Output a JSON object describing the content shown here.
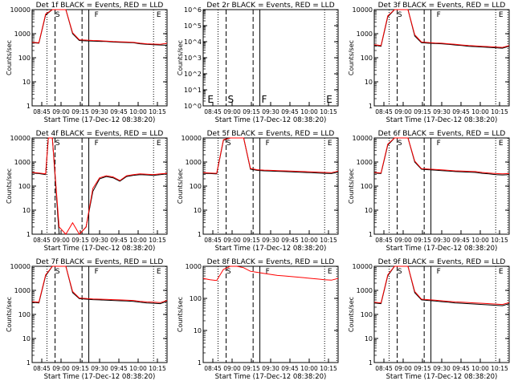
{
  "chart_data": [
    {
      "type": "line",
      "title": "Det 1f BLACK = Events, RED = LLD",
      "ylabel": "Counts/sec",
      "xlabel": "Start Time (17-Dec-12 08:38:20)",
      "yscale": "log",
      "ylim": [
        1,
        10000
      ],
      "ytick_labels": [
        "1",
        "10",
        "100",
        "1000",
        "10000"
      ],
      "xtick_labels": [
        "08:45",
        "09:00",
        "09:15",
        "09:30",
        "09:45",
        "10:00",
        "10:15"
      ],
      "markers": [
        "S",
        "F",
        "E"
      ],
      "series": [
        {
          "color": "#000000",
          "x": [
            0,
            5,
            10,
            15,
            20,
            25,
            30,
            35,
            40,
            45,
            50,
            55,
            60,
            65,
            70,
            75,
            80,
            85,
            90,
            95,
            100
          ],
          "y": [
            420,
            400,
            6000,
            10000,
            10000,
            10000,
            1000,
            520,
            500,
            490,
            480,
            470,
            450,
            440,
            430,
            420,
            380,
            360,
            350,
            340,
            330
          ]
        },
        {
          "color": "#ff0000",
          "x": [
            0,
            5,
            10,
            15,
            20,
            25,
            30,
            35,
            40,
            45,
            50,
            55,
            60,
            65,
            70,
            75,
            80,
            85,
            90,
            95,
            100
          ],
          "y": [
            440,
            420,
            6500,
            10000,
            10000,
            10000,
            1100,
            560,
            540,
            520,
            510,
            490,
            470,
            460,
            450,
            440,
            400,
            380,
            370,
            360,
            400
          ]
        }
      ]
    },
    {
      "type": "line",
      "title": "Det 2r BLACK = Events, RED = LLD",
      "ylabel": "Counts/sec",
      "xlabel": "Start Time (17-Dec-12 08:38:20)",
      "yscale": "log",
      "ylim": [
        1,
        1000000
      ],
      "ytick_labels": [
        "10^0",
        "10^1",
        "10^2",
        "10^3",
        "10^4",
        "10^5",
        "10^6"
      ],
      "xtick_labels": [
        "08:45",
        "09:00",
        "09:15",
        "09:30",
        "09:45",
        "10:00",
        "10:15"
      ],
      "markers": [
        "E",
        "S",
        "F",
        "E"
      ],
      "series": []
    },
    {
      "type": "line",
      "title": "Det 3f BLACK = Events, RED = LLD",
      "ylabel": "Counts/sec",
      "xlabel": "Start Time (17-Dec-12 08:38:20)",
      "yscale": "log",
      "ylim": [
        1,
        10000
      ],
      "ytick_labels": [
        "1",
        "10",
        "100",
        "1000",
        "10000"
      ],
      "xtick_labels": [
        "08:45",
        "09:00",
        "09:15",
        "09:30",
        "09:45",
        "10:00",
        "10:15"
      ],
      "markers": [
        "S",
        "F",
        "E"
      ],
      "series": [
        {
          "color": "#000000",
          "x": [
            0,
            5,
            10,
            15,
            20,
            25,
            30,
            35,
            40,
            45,
            50,
            55,
            60,
            65,
            70,
            75,
            80,
            85,
            90,
            95,
            100
          ],
          "y": [
            330,
            300,
            5000,
            10000,
            10000,
            10000,
            800,
            420,
            400,
            390,
            380,
            360,
            340,
            320,
            300,
            290,
            280,
            270,
            260,
            250,
            300
          ]
        },
        {
          "color": "#ff0000",
          "x": [
            0,
            5,
            10,
            15,
            20,
            25,
            30,
            35,
            40,
            45,
            50,
            55,
            60,
            65,
            70,
            75,
            80,
            85,
            90,
            95,
            100
          ],
          "y": [
            350,
            320,
            5500,
            10000,
            10000,
            10000,
            900,
            450,
            430,
            410,
            400,
            380,
            360,
            340,
            320,
            310,
            300,
            290,
            280,
            270,
            320
          ]
        }
      ]
    },
    {
      "type": "line",
      "title": "Det 4f BLACK = Events, RED = LLD",
      "ylabel": "Counts/sec",
      "xlabel": "Start Time (17-Dec-12 08:38:20)",
      "yscale": "log",
      "ylim": [
        1,
        10000
      ],
      "ytick_labels": [
        "1",
        "10",
        "100",
        "1000",
        "10000"
      ],
      "xtick_labels": [
        "08:45",
        "09:00",
        "09:15",
        "09:30",
        "09:45",
        "10:00",
        "10:15"
      ],
      "markers": [
        "S",
        "F",
        "E"
      ],
      "series": [
        {
          "color": "#000000",
          "x": [
            0,
            5,
            10,
            12,
            15,
            20,
            25,
            30,
            35,
            40,
            45,
            50,
            55,
            60,
            65,
            70,
            75,
            80,
            85,
            90,
            95,
            100
          ],
          "y": [
            350,
            330,
            300,
            10000,
            10000,
            1,
            1,
            1,
            1,
            2,
            60,
            200,
            250,
            220,
            160,
            250,
            280,
            300,
            290,
            280,
            300,
            320
          ]
        },
        {
          "color": "#ff0000",
          "x": [
            0,
            5,
            10,
            12,
            15,
            20,
            25,
            30,
            35,
            40,
            45,
            50,
            55,
            60,
            65,
            70,
            75,
            80,
            85,
            90,
            95,
            100
          ],
          "y": [
            370,
            350,
            320,
            10000,
            10000,
            2,
            1,
            3,
            1,
            2,
            80,
            220,
            270,
            240,
            170,
            270,
            300,
            320,
            310,
            300,
            320,
            340
          ]
        }
      ]
    },
    {
      "type": "line",
      "title": "Det 5f BLACK = Events, RED = LLD",
      "ylabel": "Counts/sec",
      "xlabel": "Start Time (17-Dec-12 08:38:20)",
      "yscale": "log",
      "ylim": [
        1,
        10000
      ],
      "ytick_labels": [
        "1",
        "10",
        "100",
        "1000",
        "10000"
      ],
      "xtick_labels": [
        "08:45",
        "09:00",
        "09:15",
        "09:30",
        "09:45",
        "10:00",
        "10:15"
      ],
      "markers": [
        "S",
        "F",
        "E"
      ],
      "series": [
        {
          "color": "#000000",
          "x": [
            0,
            5,
            10,
            15,
            20,
            25,
            30,
            35,
            40,
            45,
            50,
            55,
            60,
            65,
            70,
            75,
            80,
            85,
            90,
            95,
            100
          ],
          "y": [
            340,
            330,
            320,
            8000,
            10000,
            10000,
            10000,
            500,
            450,
            430,
            420,
            410,
            400,
            390,
            380,
            370,
            360,
            350,
            340,
            330,
            380
          ]
        },
        {
          "color": "#ff0000",
          "x": [
            0,
            5,
            10,
            15,
            20,
            25,
            30,
            35,
            40,
            45,
            50,
            55,
            60,
            65,
            70,
            75,
            80,
            85,
            90,
            95,
            100
          ],
          "y": [
            360,
            350,
            340,
            8500,
            10000,
            10000,
            10000,
            540,
            480,
            460,
            450,
            440,
            430,
            420,
            410,
            400,
            390,
            380,
            370,
            360,
            420
          ]
        }
      ]
    },
    {
      "type": "line",
      "title": "Det 6f BLACK = Events, RED = LLD",
      "ylabel": "Counts/sec",
      "xlabel": "Start Time (17-Dec-12 08:38:20)",
      "yscale": "log",
      "ylim": [
        1,
        10000
      ],
      "ytick_labels": [
        "1",
        "10",
        "100",
        "1000",
        "10000"
      ],
      "xtick_labels": [
        "08:45",
        "09:00",
        "09:15",
        "09:30",
        "09:45",
        "10:00",
        "10:15"
      ],
      "markers": [
        "S",
        "F",
        "E"
      ],
      "series": [
        {
          "color": "#000000",
          "x": [
            0,
            5,
            10,
            15,
            20,
            25,
            30,
            35,
            40,
            45,
            50,
            55,
            60,
            65,
            70,
            75,
            80,
            85,
            90,
            95,
            100
          ],
          "y": [
            350,
            330,
            5000,
            10000,
            10000,
            10000,
            1000,
            500,
            480,
            460,
            440,
            420,
            400,
            390,
            380,
            370,
            340,
            320,
            300,
            290,
            300
          ]
        },
        {
          "color": "#ff0000",
          "x": [
            0,
            5,
            10,
            15,
            20,
            25,
            30,
            35,
            40,
            45,
            50,
            55,
            60,
            65,
            70,
            75,
            80,
            85,
            90,
            95,
            100
          ],
          "y": [
            370,
            350,
            5500,
            10000,
            10000,
            10000,
            1100,
            530,
            510,
            490,
            470,
            450,
            430,
            420,
            410,
            400,
            370,
            350,
            330,
            320,
            330
          ]
        }
      ]
    },
    {
      "type": "line",
      "title": "Det 7f BLACK = Events, RED = LLD",
      "ylabel": "Counts/sec",
      "xlabel": "Start Time (17-Dec-12 08:38:20)",
      "yscale": "log",
      "ylim": [
        1,
        10000
      ],
      "ytick_labels": [
        "1",
        "10",
        "100",
        "1000",
        "10000"
      ],
      "xtick_labels": [
        "08:45",
        "09:00",
        "09:15",
        "09:30",
        "09:45",
        "10:00",
        "10:15"
      ],
      "markers": [
        "S",
        "F",
        "E"
      ],
      "series": [
        {
          "color": "#000000",
          "x": [
            0,
            5,
            10,
            15,
            20,
            25,
            30,
            35,
            40,
            45,
            50,
            55,
            60,
            65,
            70,
            75,
            80,
            85,
            90,
            95,
            100
          ],
          "y": [
            320,
            300,
            4000,
            10000,
            10000,
            10000,
            800,
            450,
            430,
            410,
            400,
            390,
            380,
            370,
            360,
            350,
            320,
            300,
            290,
            280,
            350
          ]
        },
        {
          "color": "#ff0000",
          "x": [
            0,
            5,
            10,
            15,
            20,
            25,
            30,
            35,
            40,
            45,
            50,
            55,
            60,
            65,
            70,
            75,
            80,
            85,
            90,
            95,
            100
          ],
          "y": [
            340,
            320,
            4400,
            10000,
            10000,
            10000,
            900,
            480,
            460,
            440,
            430,
            420,
            410,
            400,
            390,
            380,
            350,
            330,
            320,
            310,
            380
          ]
        }
      ]
    },
    {
      "type": "line",
      "title": "Det 8f BLACK = Events, RED = LLD",
      "ylabel": "Counts/sec",
      "xlabel": "Start Time (17-Dec-12 08:38:20)",
      "yscale": "log",
      "ylim": [
        1,
        1000
      ],
      "ytick_labels": [
        "1",
        "10",
        "100",
        "1000"
      ],
      "xtick_labels": [
        "08:45",
        "09:00",
        "09:15",
        "09:30",
        "09:45",
        "10:00",
        "10:15"
      ],
      "markers": [
        "S",
        "F",
        "E"
      ],
      "series": [
        {
          "color": "#ff0000",
          "x": [
            0,
            5,
            10,
            15,
            20,
            25,
            30,
            35,
            40,
            45,
            50,
            55,
            60,
            65,
            70,
            75,
            80,
            85,
            90,
            95,
            100
          ],
          "y": [
            420,
            380,
            360,
            800,
            1000,
            1000,
            900,
            700,
            650,
            600,
            560,
            520,
            500,
            480,
            460,
            440,
            420,
            400,
            380,
            370,
            420
          ]
        }
      ]
    },
    {
      "type": "line",
      "title": "Det 9f BLACK = Events, RED = LLD",
      "ylabel": "Counts/sec",
      "xlabel": "Start Time (17-Dec-12 08:38:20)",
      "yscale": "log",
      "ylim": [
        1,
        10000
      ],
      "ytick_labels": [
        "1",
        "10",
        "100",
        "1000",
        "10000"
      ],
      "xtick_labels": [
        "08:45",
        "09:00",
        "09:15",
        "09:30",
        "09:45",
        "10:00",
        "10:15"
      ],
      "markers": [
        "S",
        "F",
        "E"
      ],
      "series": [
        {
          "color": "#000000",
          "x": [
            0,
            5,
            10,
            15,
            20,
            25,
            30,
            35,
            40,
            45,
            50,
            55,
            60,
            65,
            70,
            75,
            80,
            85,
            90,
            95,
            100
          ],
          "y": [
            300,
            280,
            4000,
            10000,
            10000,
            10000,
            800,
            400,
            380,
            360,
            340,
            320,
            300,
            290,
            280,
            270,
            260,
            250,
            240,
            230,
            280
          ]
        },
        {
          "color": "#ff0000",
          "x": [
            0,
            5,
            10,
            15,
            20,
            25,
            30,
            35,
            40,
            45,
            50,
            55,
            60,
            65,
            70,
            75,
            80,
            85,
            90,
            95,
            100
          ],
          "y": [
            320,
            300,
            4400,
            10000,
            10000,
            10000,
            900,
            430,
            410,
            390,
            370,
            350,
            330,
            320,
            310,
            300,
            290,
            280,
            270,
            260,
            310
          ]
        }
      ]
    }
  ]
}
